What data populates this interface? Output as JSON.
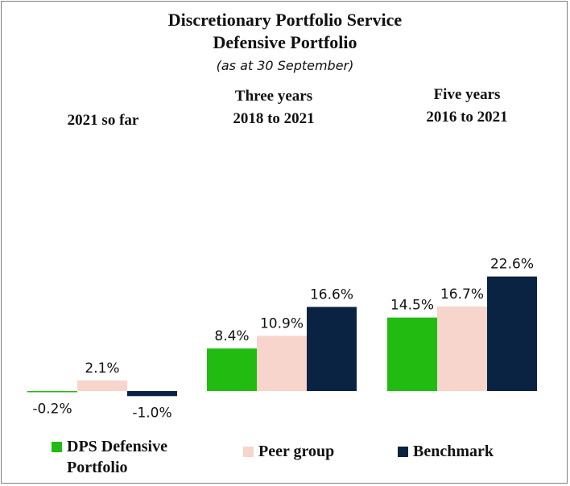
{
  "chart_data": {
    "type": "bar",
    "title": "Discretionary Portfolio Service",
    "subtitle": "Defensive Portfolio",
    "note": "(as at 30 September)",
    "categories": [
      {
        "line1": "2021 so far",
        "line2": ""
      },
      {
        "line1": "Three years",
        "line2": "2018 to 2021"
      },
      {
        "line1": "Five years",
        "line2": "2016 to 2021"
      }
    ],
    "series": [
      {
        "name": "DPS Defensive Portfolio",
        "color": "#22bb11",
        "values": [
          -0.2,
          8.4,
          14.5
        ],
        "labels": [
          "-0.2%",
          "8.4%",
          "14.5%"
        ]
      },
      {
        "name": "Peer group",
        "color": "#f8d5cc",
        "values": [
          2.1,
          10.9,
          16.7
        ],
        "labels": [
          "2.1%",
          "10.9%",
          "16.7%"
        ]
      },
      {
        "name": "Benchmark",
        "color": "#0b2343",
        "values": [
          -1.0,
          16.6,
          22.6
        ],
        "labels": [
          "-1.0%",
          "16.6%",
          "22.6%"
        ]
      }
    ],
    "legend": {
      "position": "bottom",
      "items": [
        {
          "line1": "DPS Defensive",
          "line2": "Portfolio"
        },
        {
          "line1": "Peer group",
          "line2": ""
        },
        {
          "line1": "Benchmark",
          "line2": ""
        }
      ]
    },
    "xlabel": "",
    "ylabel": "",
    "grid": false
  }
}
